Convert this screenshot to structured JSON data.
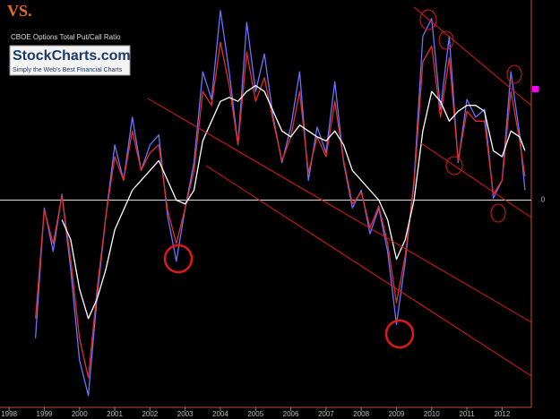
{
  "header_text": "VS.",
  "logo": {
    "name": "StockCharts.com",
    "tagline": "Simply the Web's Best Financial Charts"
  },
  "chart_data": {
    "type": "line",
    "title": "CBOE Options Total Put/Call Ratio",
    "x": [
      1998.75,
      1999.0,
      1999.25,
      1999.5,
      1999.75,
      2000.0,
      2000.25,
      2000.5,
      2000.75,
      2001.0,
      2001.25,
      2001.5,
      2001.75,
      2002.0,
      2002.25,
      2002.5,
      2002.75,
      2003.0,
      2003.25,
      2003.5,
      2003.75,
      2004.0,
      2004.25,
      2004.5,
      2004.75,
      2005.0,
      2005.25,
      2005.5,
      2005.75,
      2006.0,
      2006.25,
      2006.5,
      2006.75,
      2007.0,
      2007.25,
      2007.5,
      2007.75,
      2008.0,
      2008.25,
      2008.5,
      2008.75,
      2009.0,
      2009.25,
      2009.5,
      2009.75,
      2010.0,
      2010.25,
      2010.5,
      2010.75,
      2011.0,
      2011.25,
      2011.5,
      2011.75,
      2012.0,
      2012.25,
      2012.5,
      2012.65
    ],
    "series": [
      {
        "color": "#7070ff",
        "values": [
          -0.7,
          -0.04,
          -0.26,
          0.03,
          -0.35,
          -0.81,
          -0.99,
          -0.49,
          -0.08,
          0.28,
          0.1,
          0.42,
          0.15,
          0.28,
          0.33,
          -0.08,
          -0.31,
          -0.04,
          0.19,
          0.65,
          0.51,
          0.96,
          0.65,
          0.28,
          0.9,
          0.55,
          0.74,
          0.42,
          0.19,
          0.37,
          0.65,
          0.1,
          0.37,
          0.24,
          0.6,
          0.19,
          -0.04,
          0.05,
          -0.17,
          -0.04,
          -0.26,
          -0.63,
          -0.31,
          0.1,
          0.83,
          0.92,
          0.46,
          0.83,
          0.19,
          0.51,
          0.42,
          0.46,
          0.01,
          0.1,
          0.65,
          0.33,
          0.05
        ]
      },
      {
        "color": "#e0302a",
        "values": [
          -0.6,
          -0.05,
          -0.22,
          0.02,
          -0.3,
          -0.7,
          -0.9,
          -0.45,
          -0.08,
          0.22,
          0.1,
          0.35,
          0.15,
          0.24,
          0.28,
          -0.05,
          -0.22,
          -0.04,
          0.15,
          0.55,
          0.48,
          0.8,
          0.58,
          0.28,
          0.75,
          0.5,
          0.62,
          0.4,
          0.2,
          0.32,
          0.55,
          0.14,
          0.32,
          0.22,
          0.5,
          0.2,
          -0.02,
          0.04,
          -0.14,
          -0.03,
          -0.22,
          -0.52,
          -0.28,
          0.08,
          0.7,
          0.78,
          0.42,
          0.72,
          0.2,
          0.45,
          0.4,
          0.4,
          0.03,
          0.1,
          0.55,
          0.3,
          0.12
        ]
      },
      {
        "color": "#ffffff",
        "values": [
          null,
          null,
          null,
          -0.1,
          -0.2,
          -0.45,
          -0.6,
          -0.5,
          -0.35,
          -0.15,
          -0.05,
          0.05,
          0.1,
          0.15,
          0.2,
          0.1,
          0.0,
          -0.02,
          0.05,
          0.3,
          0.4,
          0.5,
          0.52,
          0.5,
          0.55,
          0.58,
          0.55,
          0.45,
          0.35,
          0.32,
          0.38,
          0.35,
          0.32,
          0.3,
          0.35,
          0.28,
          0.15,
          0.1,
          0.05,
          0.0,
          -0.1,
          -0.3,
          -0.2,
          0.0,
          0.35,
          0.55,
          0.5,
          0.4,
          0.45,
          0.48,
          0.48,
          0.45,
          0.25,
          0.22,
          0.35,
          0.32,
          0.25
        ]
      }
    ],
    "xlim": [
      1997.92,
      2012.83
    ],
    "xticks": [
      1998,
      1999,
      2000,
      2001,
      2002,
      2003,
      2004,
      2005,
      2006,
      2007,
      2008,
      2009,
      2010,
      2011,
      2012
    ],
    "ylim": [
      -1.05,
      1.0
    ],
    "yticks": [
      0
    ],
    "grid": true
  }
}
